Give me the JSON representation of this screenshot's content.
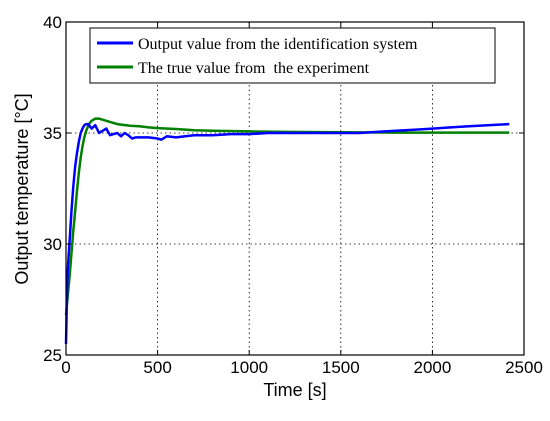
{
  "chart_data": {
    "type": "line",
    "title": "",
    "xlabel": "Time [s]",
    "ylabel": "Output temperature [°C]",
    "xlim": [
      0,
      2500
    ],
    "ylim": [
      25,
      40
    ],
    "xticks": [
      0,
      500,
      1000,
      1500,
      2000,
      2500
    ],
    "yticks": [
      25,
      30,
      35,
      40
    ],
    "xtick_labels": [
      "0",
      "500",
      "1000",
      "1500",
      "2000",
      "2500"
    ],
    "ytick_labels": [
      "25",
      "30",
      "35",
      "40"
    ],
    "grid": true,
    "legend_position": "top",
    "series": [
      {
        "name": "Output value from the identification system",
        "color": "#0000ff",
        "x": [
          0,
          5,
          10,
          20,
          30,
          40,
          50,
          60,
          70,
          80,
          90,
          100,
          110,
          120,
          130,
          140,
          160,
          180,
          200,
          220,
          240,
          260,
          280,
          300,
          320,
          340,
          360,
          380,
          400,
          450,
          500,
          520,
          550,
          600,
          650,
          700,
          800,
          900,
          1000,
          1100,
          1200,
          1300,
          1400,
          1500,
          1600,
          1700,
          1800,
          1900,
          2000,
          2100,
          2200,
          2300,
          2420
        ],
        "y": [
          25.5,
          27.5,
          28.9,
          30.2,
          31.5,
          32.6,
          33.5,
          34.1,
          34.6,
          35.0,
          35.2,
          35.35,
          35.4,
          35.4,
          35.3,
          35.2,
          35.35,
          35.0,
          35.1,
          35.2,
          34.9,
          34.95,
          35.0,
          34.85,
          35.0,
          34.9,
          34.75,
          34.8,
          34.8,
          34.8,
          34.75,
          34.7,
          34.85,
          34.8,
          34.85,
          34.9,
          34.9,
          34.95,
          34.95,
          35.0,
          35.0,
          35.0,
          35.0,
          35.0,
          35.0,
          35.05,
          35.1,
          35.15,
          35.2,
          35.25,
          35.3,
          35.35,
          35.4
        ]
      },
      {
        "name": "The true value from  the experiment",
        "color": "#008000",
        "x": [
          0,
          10,
          20,
          30,
          40,
          50,
          60,
          70,
          80,
          90,
          100,
          110,
          120,
          130,
          140,
          150,
          160,
          170,
          180,
          190,
          200,
          220,
          240,
          260,
          280,
          300,
          350,
          400,
          450,
          500,
          600,
          700,
          800,
          1000,
          1200,
          1500,
          1800,
          2100,
          2420
        ],
        "y": [
          26.8,
          27.7,
          28.6,
          29.6,
          30.6,
          31.5,
          32.4,
          33.2,
          33.9,
          34.4,
          34.8,
          35.1,
          35.3,
          35.45,
          35.55,
          35.6,
          35.65,
          35.65,
          35.65,
          35.62,
          35.6,
          35.55,
          35.5,
          35.45,
          35.4,
          35.38,
          35.33,
          35.3,
          35.25,
          35.22,
          35.18,
          35.12,
          35.1,
          35.07,
          35.05,
          35.03,
          35.02,
          35.02,
          35.02
        ]
      }
    ]
  }
}
